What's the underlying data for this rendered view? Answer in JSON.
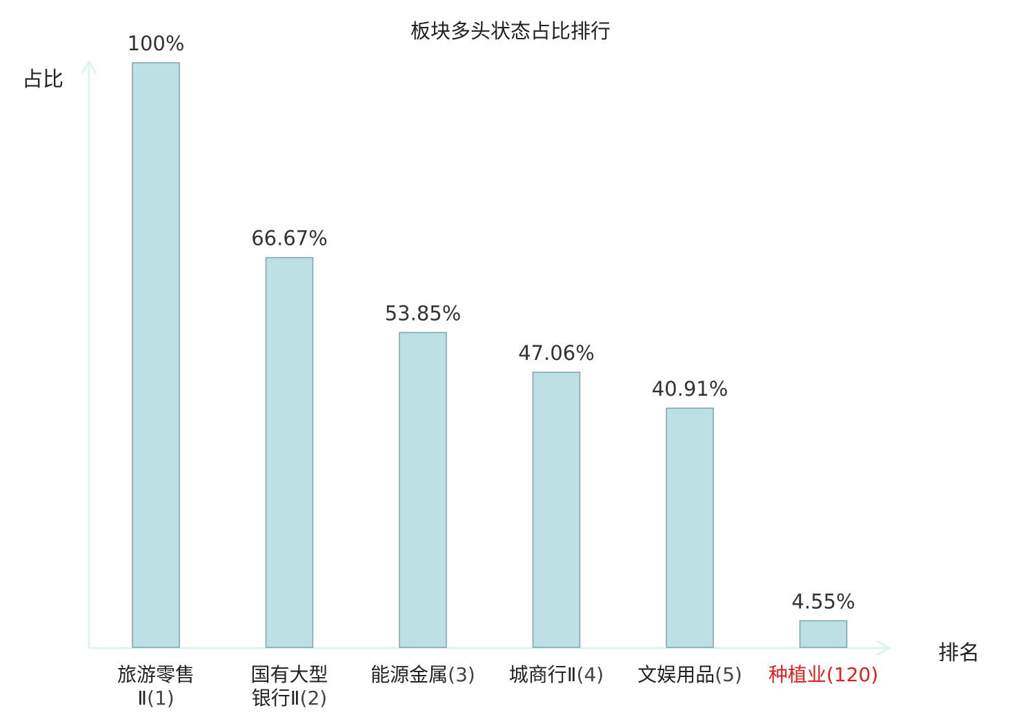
{
  "chart_data": {
    "type": "bar",
    "title": "板块多头状态占比排行",
    "ylabel": "占比",
    "xlabel": "排名",
    "ylim": [
      0,
      100
    ],
    "grid": false,
    "categories": [
      {
        "name": "旅游零售",
        "name2": "Ⅱ",
        "rank": "(1)",
        "wrap": true
      },
      {
        "name": "国有大型",
        "name2": "银行Ⅱ",
        "rank": "(2)",
        "wrap": true
      },
      {
        "name": "能源金属",
        "name2": "",
        "rank": "(3)",
        "wrap": false
      },
      {
        "name": "城商行Ⅱ",
        "name2": "",
        "rank": "(4)",
        "wrap": false
      },
      {
        "name": "文娱用品",
        "name2": "",
        "rank": "(5)",
        "wrap": false
      },
      {
        "name": "种植业",
        "name2": "",
        "rank": "(120)",
        "wrap": false,
        "highlight": true
      }
    ],
    "values": [
      100,
      66.67,
      53.85,
      47.06,
      40.91,
      4.55
    ],
    "data_labels": [
      "100%",
      "66.67%",
      "53.85%",
      "47.06%",
      "40.91%",
      "4.55%"
    ],
    "colors": {
      "bar_fill": "#bce0e3",
      "bar_stroke": "#7ea3a8",
      "axis": "#e0f3f1",
      "highlight": "#e11d1d"
    }
  }
}
